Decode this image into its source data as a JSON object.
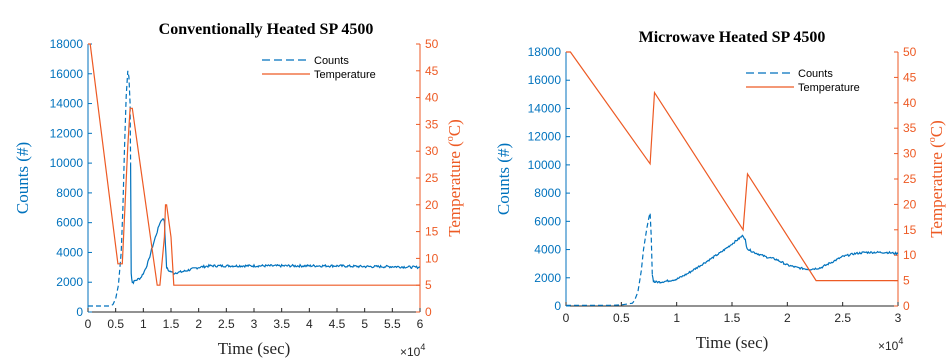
{
  "chart_data": [
    {
      "type": "line",
      "title": "Conventionally Heated SP 4500",
      "xlabel": "Time (sec)",
      "x_multiplier": "×10",
      "x_multiplier_exp": "4",
      "ylabel_left": "Counts (#)",
      "ylabel_right_main": "Temperature (",
      "ylabel_right_deg": "o",
      "ylabel_right_unit": "C)",
      "xlim": [
        0,
        6
      ],
      "ylim_left": [
        0,
        18000
      ],
      "ylim_right": [
        0,
        50
      ],
      "xticks": [
        0,
        0.5,
        1,
        1.5,
        2,
        2.5,
        3,
        3.5,
        4,
        4.5,
        5,
        5.5,
        6
      ],
      "xtick_labels": [
        "0",
        "0.5",
        "1",
        "1.5",
        "2",
        "2.5",
        "3",
        "3.5",
        "4",
        "4.5",
        "5",
        "5.5",
        "6"
      ],
      "yticks_left": [
        0,
        2000,
        4000,
        6000,
        8000,
        10000,
        12000,
        14000,
        16000,
        18000
      ],
      "ytick_labels_left": [
        "0",
        "2000",
        "4000",
        "6000",
        "8000",
        "10000",
        "12000",
        "14000",
        "16000",
        "18000"
      ],
      "yticks_right": [
        0,
        5,
        10,
        15,
        20,
        25,
        30,
        35,
        40,
        45,
        50
      ],
      "ytick_labels_right": [
        "0",
        "5",
        "10",
        "15",
        "20",
        "25",
        "30",
        "35",
        "40",
        "45",
        "50"
      ],
      "legend_position": "top-right",
      "colors": {
        "counts": "#0072BD",
        "temperature": "#ED5A24",
        "axis_left": "#0072BD",
        "axis_right": "#ED5A24"
      },
      "series": [
        {
          "name": "Counts",
          "axis": "left",
          "style": "dashed-then-solid",
          "dash_until": 0.77,
          "noise": 80,
          "x": [
            0,
            0.1,
            0.2,
            0.3,
            0.4,
            0.45,
            0.5,
            0.55,
            0.6,
            0.63,
            0.66,
            0.69,
            0.72,
            0.74,
            0.76,
            0.77,
            0.78,
            0.79,
            0.8,
            0.82,
            0.85,
            0.9,
            0.95,
            1.0,
            1.05,
            1.1,
            1.15,
            1.2,
            1.25,
            1.3,
            1.35,
            1.38,
            1.4,
            1.42,
            1.45,
            1.5,
            1.55,
            1.6,
            1.7,
            1.8,
            1.9,
            2.0,
            2.2,
            2.5,
            3.0,
            3.5,
            4.0,
            4.5,
            5.0,
            5.5,
            6.0
          ],
          "y": [
            400,
            400,
            400,
            400,
            400,
            500,
            900,
            1800,
            4000,
            7000,
            11000,
            14500,
            16200,
            15800,
            14000,
            10000,
            2600,
            2300,
            2000,
            2000,
            2100,
            2200,
            2300,
            2600,
            3000,
            3500,
            4200,
            4800,
            5400,
            6000,
            6300,
            6100,
            4500,
            3000,
            2800,
            2700,
            2600,
            2650,
            2700,
            2800,
            2900,
            3000,
            3100,
            3100,
            3100,
            3100,
            3100,
            3100,
            3050,
            3050,
            3000
          ]
        },
        {
          "name": "Temperature",
          "axis": "right",
          "style": "solid",
          "x": [
            0,
            0.04,
            0.54,
            0.62,
            0.72,
            0.76,
            0.8,
            1.25,
            1.3,
            1.38,
            1.4,
            1.42,
            1.5,
            1.55,
            1.6,
            6.0
          ],
          "y": [
            50,
            50,
            9,
            9,
            31,
            38,
            38,
            5,
            5,
            14,
            20,
            20,
            14,
            5,
            5,
            5
          ]
        }
      ]
    },
    {
      "type": "line",
      "title": "Microwave Heated SP 4500",
      "xlabel": "Time (sec)",
      "x_multiplier": "×10",
      "x_multiplier_exp": "4",
      "ylabel_left": "Counts (#)",
      "ylabel_right_main": "Temperature (",
      "ylabel_right_deg": "o",
      "ylabel_right_unit": "C)",
      "xlim": [
        0,
        3
      ],
      "ylim_left": [
        0,
        18000
      ],
      "ylim_right": [
        0,
        50
      ],
      "xticks": [
        0,
        0.5,
        1,
        1.5,
        2,
        2.5,
        3
      ],
      "xtick_labels": [
        "0",
        "0.5",
        "1",
        "1.5",
        "2",
        "2.5",
        "3"
      ],
      "yticks_left": [
        0,
        2000,
        4000,
        6000,
        8000,
        10000,
        12000,
        14000,
        16000,
        18000
      ],
      "ytick_labels_left": [
        "0",
        "2000",
        "4000",
        "6000",
        "8000",
        "10000",
        "12000",
        "14000",
        "16000",
        "18000"
      ],
      "yticks_right": [
        0,
        5,
        10,
        15,
        20,
        25,
        30,
        35,
        40,
        45,
        50
      ],
      "ytick_labels_right": [
        "0",
        "5",
        "10",
        "15",
        "20",
        "25",
        "30",
        "35",
        "40",
        "45",
        "50"
      ],
      "legend_position": "top-right",
      "colors": {
        "counts": "#0072BD",
        "temperature": "#ED5A24",
        "axis_left": "#0072BD",
        "axis_right": "#ED5A24"
      },
      "series": [
        {
          "name": "Counts",
          "axis": "left",
          "style": "dashed-then-solid",
          "dash_until": 0.78,
          "noise": 70,
          "x": [
            0,
            0.1,
            0.2,
            0.3,
            0.4,
            0.5,
            0.6,
            0.62,
            0.65,
            0.68,
            0.7,
            0.73,
            0.75,
            0.76,
            0.77,
            0.78,
            0.79,
            0.8,
            0.85,
            0.9,
            1.0,
            1.1,
            1.2,
            1.3,
            1.4,
            1.5,
            1.55,
            1.6,
            1.62,
            1.63,
            1.65,
            1.7,
            1.8,
            1.9,
            2.0,
            2.1,
            2.2,
            2.3,
            2.4,
            2.5,
            2.6,
            2.7,
            2.8,
            2.9,
            3.0
          ],
          "y": [
            50,
            50,
            50,
            50,
            50,
            80,
            200,
            400,
            1000,
            2500,
            4000,
            5500,
            6300,
            6600,
            5000,
            2200,
            1800,
            1700,
            1700,
            1750,
            1900,
            2300,
            2800,
            3300,
            3800,
            4400,
            4700,
            5000,
            4700,
            4200,
            4000,
            3800,
            3500,
            3300,
            2900,
            2700,
            2600,
            2700,
            3100,
            3500,
            3700,
            3800,
            3800,
            3800,
            3700
          ]
        },
        {
          "name": "Temperature",
          "axis": "right",
          "style": "solid",
          "x": [
            0,
            0.04,
            0.76,
            0.8,
            1.6,
            1.64,
            2.26,
            3.0
          ],
          "y": [
            50,
            50,
            28,
            42,
            15,
            26,
            5,
            5
          ]
        }
      ]
    }
  ]
}
